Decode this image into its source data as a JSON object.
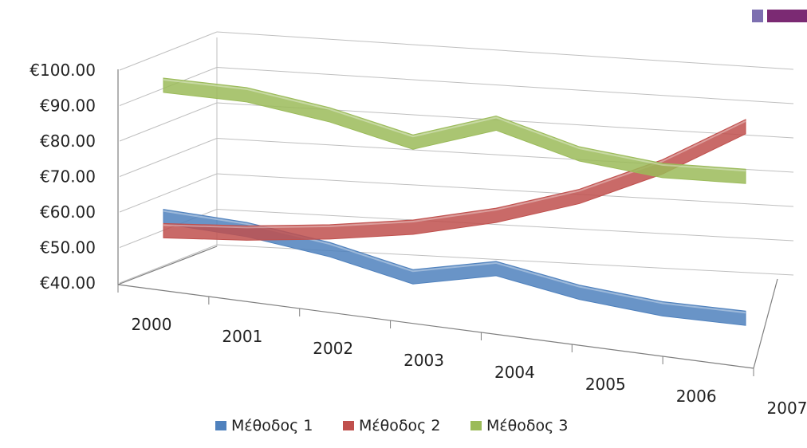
{
  "header": {
    "accent_colors": [
      "#7d6fb0",
      "#7b2a73"
    ]
  },
  "chart_data": {
    "type": "line",
    "style": "3d-ribbon",
    "categories": [
      "2000",
      "2001",
      "2002",
      "2003",
      "2004",
      "2005",
      "2006",
      "2007"
    ],
    "series": [
      {
        "name": "Μέθοδος 1",
        "color": "#4f81bd",
        "values": [
          52,
          50,
          46,
          40,
          44,
          39,
          36,
          35
        ]
      },
      {
        "name": "Μέθοδος 2",
        "color": "#c0504d",
        "values": [
          48,
          49,
          51,
          54,
          59,
          66,
          76,
          89
        ]
      },
      {
        "name": "Μέθοδος 3",
        "color": "#9bbb59",
        "values": [
          89,
          88,
          84,
          78,
          85,
          78,
          75,
          75
        ]
      }
    ],
    "y_tick_labels": [
      "€40.00",
      "€50.00",
      "€60.00",
      "€70.00",
      "€80.00",
      "€90.00",
      "€100.00"
    ],
    "ylim": [
      40,
      100
    ],
    "grid": true,
    "legend_position": "bottom",
    "title": "",
    "xlabel": "",
    "ylabel": ""
  }
}
